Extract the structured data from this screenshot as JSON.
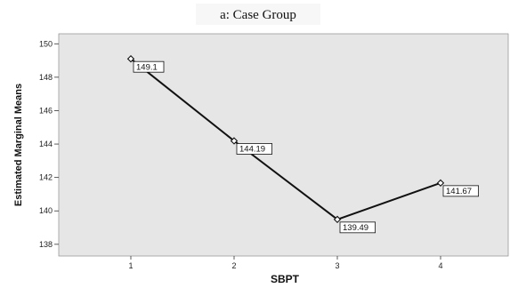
{
  "chart_data": {
    "type": "line",
    "title": "a:  Case Group",
    "xlabel": "SBPT",
    "ylabel": "Estimated Marginal Means",
    "x": [
      "1",
      "2",
      "3",
      "4"
    ],
    "series": [
      {
        "values": [
          149.1,
          144.19,
          139.49,
          141.67
        ],
        "data_labels": [
          "149.1",
          "144.19",
          "139.49",
          "141.67"
        ]
      }
    ],
    "yticks": [
      138,
      140,
      142,
      144,
      146,
      148,
      150
    ],
    "ylim": [
      137.3,
      150.6
    ],
    "grid": false,
    "plot_background": "#e6e6e6",
    "line_color": "#111111",
    "marker": "diamond"
  }
}
